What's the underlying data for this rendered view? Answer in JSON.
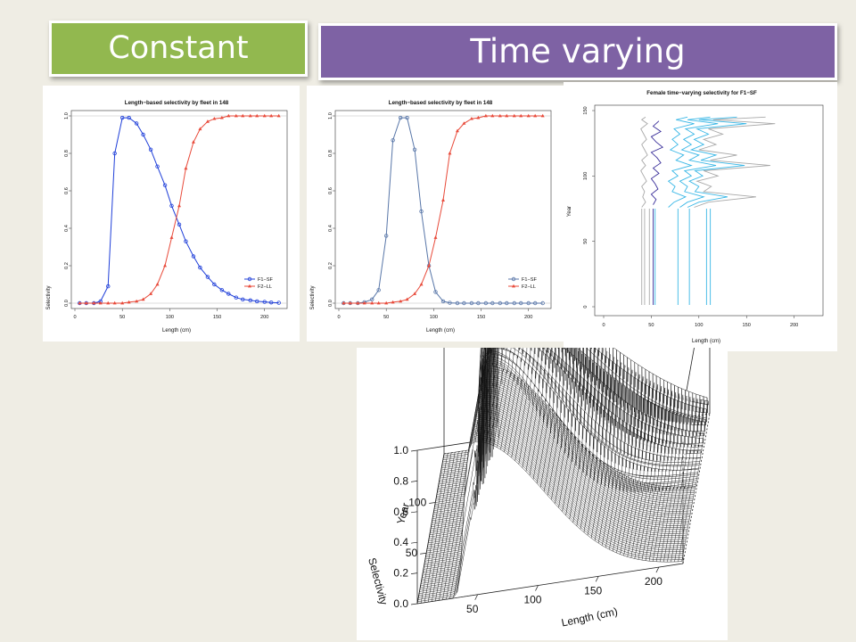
{
  "banners": {
    "constant": "Constant",
    "time_varying": "Time varying"
  },
  "colors": {
    "constant_banner": "#92b84f",
    "time_varying_banner": "#7e62a4",
    "f1_constant": "#1f3fd9",
    "f1_time_varying": "#5876a8",
    "f2": "#e84a3a",
    "contour_light": "#39b7e6",
    "contour_grey": "#a8a8a8",
    "contour_dark": "#3a2f9a"
  },
  "chart_data": [
    {
      "type": "line",
      "title": "Length−based selectivity by fleet in 148",
      "xlabel": "Length (cm)",
      "ylabel": "Selectivity",
      "xlim": [
        0,
        220
      ],
      "ylim": [
        0,
        1.0
      ],
      "xticks": [
        "0",
        "50",
        "100",
        "150",
        "200"
      ],
      "yticks": [
        "0.0",
        "0.2",
        "0.4",
        "0.6",
        "0.8",
        "1.0"
      ],
      "legend": "bottom-right",
      "series": [
        {
          "name": "F1−SF",
          "marker": "circle",
          "x": [
            5,
            12,
            20,
            27,
            35,
            42,
            50,
            57,
            65,
            72,
            80,
            87,
            95,
            102,
            110,
            117,
            125,
            132,
            140,
            147,
            155,
            162,
            170,
            177,
            185,
            192,
            200,
            207,
            215
          ],
          "y": [
            0,
            0,
            0,
            0.01,
            0.09,
            0.8,
            0.99,
            0.99,
            0.96,
            0.9,
            0.82,
            0.73,
            0.63,
            0.52,
            0.42,
            0.33,
            0.25,
            0.19,
            0.14,
            0.1,
            0.07,
            0.05,
            0.03,
            0.02,
            0.015,
            0.01,
            0.007,
            0.004,
            0.002
          ]
        },
        {
          "name": "F2−LL",
          "marker": "triangle",
          "x": [
            5,
            12,
            20,
            27,
            35,
            42,
            50,
            57,
            65,
            72,
            80,
            87,
            95,
            102,
            110,
            117,
            125,
            132,
            140,
            147,
            155,
            162,
            170,
            177,
            185,
            192,
            200,
            207,
            215
          ],
          "y": [
            0,
            0,
            0,
            0,
            0,
            0,
            0,
            0.005,
            0.01,
            0.02,
            0.05,
            0.1,
            0.2,
            0.35,
            0.52,
            0.72,
            0.86,
            0.93,
            0.97,
            0.985,
            0.99,
            1.0,
            1.0,
            1.0,
            1.0,
            1.0,
            1.0,
            1.0,
            1.0
          ]
        }
      ]
    },
    {
      "type": "line",
      "title": "Length−based selectivity by fleet in 148",
      "xlabel": "Length (cm)",
      "ylabel": "Selectivity",
      "xlim": [
        0,
        220
      ],
      "ylim": [
        0,
        1.0
      ],
      "xticks": [
        "0",
        "50",
        "100",
        "150",
        "200"
      ],
      "yticks": [
        "0.0",
        "0.2",
        "0.4",
        "0.6",
        "0.8",
        "1.0"
      ],
      "legend": "bottom-right",
      "series": [
        {
          "name": "F1−SF",
          "marker": "circle",
          "x": [
            5,
            12,
            20,
            27,
            35,
            42,
            50,
            57,
            65,
            72,
            80,
            87,
            95,
            102,
            110,
            117,
            125,
            132,
            140,
            147,
            155,
            162,
            170,
            177,
            185,
            192,
            200,
            207,
            215
          ],
          "y": [
            0,
            0,
            0,
            0.005,
            0.02,
            0.07,
            0.36,
            0.87,
            0.99,
            0.99,
            0.82,
            0.49,
            0.2,
            0.06,
            0.01,
            0.002,
            0,
            0,
            0,
            0,
            0,
            0,
            0,
            0,
            0,
            0,
            0,
            0,
            0
          ]
        },
        {
          "name": "F2−LL",
          "marker": "triangle",
          "x": [
            5,
            12,
            20,
            27,
            35,
            42,
            50,
            57,
            65,
            72,
            80,
            87,
            95,
            102,
            110,
            117,
            125,
            132,
            140,
            147,
            155,
            162,
            170,
            177,
            185,
            192,
            200,
            207,
            215
          ],
          "y": [
            0,
            0,
            0,
            0,
            0,
            0,
            0,
            0.005,
            0.01,
            0.02,
            0.05,
            0.1,
            0.2,
            0.35,
            0.55,
            0.8,
            0.92,
            0.96,
            0.985,
            0.99,
            1.0,
            1.0,
            1.0,
            1.0,
            1.0,
            1.0,
            1.0,
            1.0,
            1.0
          ]
        }
      ]
    },
    {
      "type": "contour",
      "title": "Female time−varying selectivity for F1−SF",
      "xlabel": "Length (cm)",
      "ylabel": "Year",
      "xlim": [
        0,
        220
      ],
      "ylim": [
        0,
        150
      ],
      "xticks": [
        "0",
        "50",
        "100",
        "150",
        "200"
      ],
      "yticks": [
        "0",
        "50",
        "100",
        "150"
      ],
      "constant_until_year": 75,
      "vertical_lines_length": [
        40,
        43,
        48,
        52,
        54,
        78,
        90,
        108,
        112
      ],
      "contour_lines": [
        {
          "shade": "contour_grey",
          "years": [
            145,
            143,
            140,
            136,
            132,
            128,
            124,
            120,
            116,
            112,
            108,
            104,
            100,
            96,
            92,
            88,
            84,
            80,
            76
          ],
          "x": [
            170,
            115,
            180,
            110,
            125,
            105,
            118,
            100,
            140,
            112,
            175,
            105,
            120,
            98,
            113,
            105,
            160,
            110,
            95
          ]
        },
        {
          "shade": "contour_light",
          "years": [
            145,
            143,
            140,
            136,
            132,
            128,
            124,
            120,
            116,
            112,
            108,
            104,
            100,
            96,
            92,
            88,
            84,
            80,
            76
          ],
          "x": [
            140,
            100,
            150,
            98,
            110,
            95,
            105,
            92,
            118,
            102,
            148,
            96,
            104,
            90,
            100,
            96,
            130,
            100,
            88
          ]
        },
        {
          "shade": "contour_light",
          "years": [
            145,
            143,
            140,
            136,
            132,
            128,
            124,
            120,
            116,
            112,
            108,
            104,
            100,
            96,
            92,
            88,
            84,
            80,
            76
          ],
          "x": [
            112,
            88,
            120,
            86,
            95,
            84,
            92,
            82,
            100,
            90,
            118,
            85,
            92,
            80,
            88,
            85,
            105,
            88,
            80
          ]
        },
        {
          "shade": "contour_light",
          "years": [
            145,
            143,
            140,
            136,
            132,
            128,
            124,
            120,
            116,
            112,
            108,
            104,
            100,
            96,
            92,
            88,
            84,
            80,
            76
          ],
          "x": [
            88,
            76,
            95,
            74,
            80,
            72,
            78,
            70,
            84,
            76,
            92,
            72,
            78,
            68,
            75,
            72,
            86,
            74,
            68
          ]
        },
        {
          "shade": "contour_dark",
          "years": [
            142,
            138,
            134,
            130,
            126,
            122,
            118,
            114,
            110,
            106,
            102,
            98,
            94,
            90,
            86,
            82,
            78
          ],
          "x": [
            58,
            52,
            60,
            50,
            55,
            62,
            50,
            56,
            60,
            52,
            58,
            50,
            54,
            57,
            50,
            55,
            52
          ]
        },
        {
          "shade": "contour_grey",
          "years": [
            145,
            143,
            140,
            136,
            132,
            128,
            124,
            120,
            116,
            112,
            108,
            104,
            100,
            96,
            92,
            88,
            84,
            80,
            76
          ],
          "x": [
            44,
            40,
            46,
            39,
            42,
            45,
            40,
            43,
            46,
            40,
            44,
            39,
            42,
            45,
            40,
            43,
            41,
            44,
            40
          ]
        }
      ]
    },
    {
      "type": "surface3d",
      "xlabel": "Length (cm)",
      "ylabel": "Year",
      "zlabel": "Selectivity",
      "xticks": [
        "50",
        "100",
        "150",
        "200"
      ],
      "yticks": [
        "50",
        "100"
      ],
      "zticks": [
        "0.0",
        "0.2",
        "0.4",
        "0.6",
        "0.8",
        "1.0"
      ],
      "xlim": [
        0,
        220
      ],
      "ylim": [
        0,
        148
      ],
      "zlim": [
        0,
        1.0
      ]
    }
  ]
}
